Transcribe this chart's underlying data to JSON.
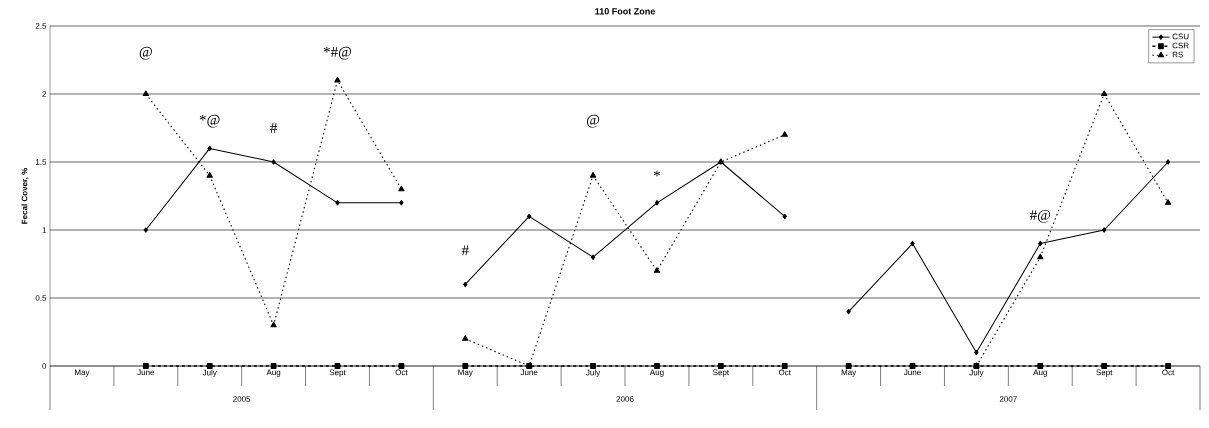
{
  "chart_data": {
    "type": "line",
    "title": "110 Foot Zone",
    "ylabel": "Fecal Cover, %",
    "categories": [
      "May",
      "June",
      "July",
      "Aug",
      "Sept",
      "Oct",
      "May",
      "June",
      "July",
      "Aug",
      "Sept",
      "Oct",
      "May",
      "June",
      "July",
      "Aug",
      "Sept",
      "Oct"
    ],
    "series": [
      {
        "name": "CSU",
        "color": "#000000",
        "marker": "diamond",
        "line_style": "solid",
        "values": [
          null,
          1.0,
          1.6,
          1.5,
          1.2,
          1.2,
          0.6,
          1.1,
          0.8,
          1.2,
          1.5,
          1.1,
          0.4,
          0.9,
          0.1,
          0.9,
          1.0,
          1.5
        ]
      },
      {
        "name": "CSR",
        "color": "#000000",
        "marker": "square",
        "line_style": "dashed",
        "values": [
          null,
          0,
          0,
          0,
          0,
          0,
          0,
          0,
          0,
          0,
          0,
          0,
          0,
          0,
          0,
          0,
          0,
          0
        ]
      },
      {
        "name": "RS",
        "color": "#000000",
        "marker": "triangle",
        "line_style": "dotted",
        "values": [
          null,
          2.0,
          1.4,
          0.3,
          2.1,
          1.3,
          0.2,
          0.0,
          1.4,
          0.7,
          1.5,
          1.7,
          null,
          null,
          0.0,
          0.8,
          2.0,
          1.2
        ]
      }
    ],
    "ylim": [
      0,
      2.5
    ],
    "yticks": [
      0,
      0.5,
      1,
      1.5,
      2,
      2.5
    ],
    "grid": "y",
    "legend": "top right",
    "annotations": [
      "2005",
      "2006",
      "2007",
      "@",
      "*@",
      "#",
      "*#@",
      "#",
      "@",
      "*",
      "#@"
    ]
  }
}
